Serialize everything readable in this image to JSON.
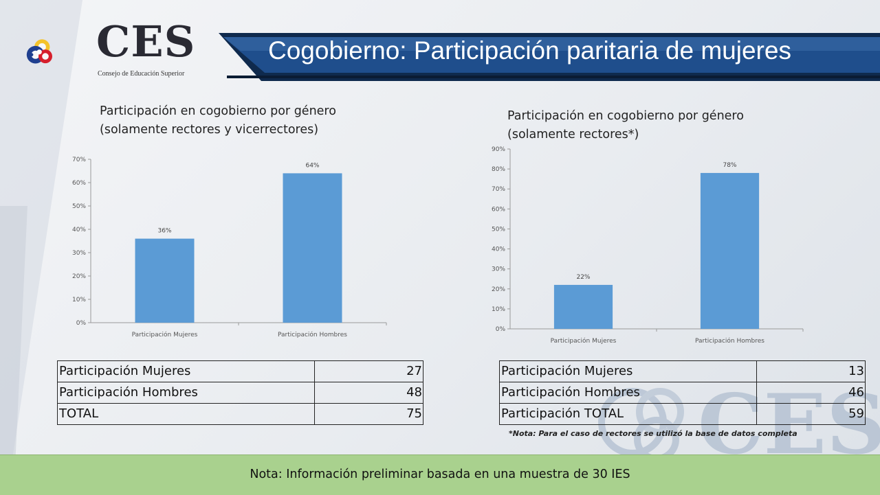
{
  "header": {
    "title": "Cogobierno: Participación paritaria de mujeres",
    "logo_text": "CES",
    "logo_subtitle": "Consejo de Educación Superior",
    "watermark_text": "CES"
  },
  "colors": {
    "bar": "#5b9bd5",
    "banner": "#1f4e8c",
    "footer": "#a9d18e"
  },
  "chart_data": [
    {
      "type": "bar",
      "title": "Participación en cogobierno por género\n(solamente rectores y vicerrectores)",
      "categories": [
        "Participación Mujeres",
        "Participación Hombres"
      ],
      "values": [
        36,
        64
      ],
      "value_labels": [
        "36%",
        "64%"
      ],
      "ylim": [
        0,
        70
      ],
      "yticks": [
        0,
        10,
        20,
        30,
        40,
        50,
        60,
        70
      ],
      "ytick_labels": [
        "0%",
        "10%",
        "20%",
        "30%",
        "40%",
        "50%",
        "60%",
        "70%"
      ],
      "grid": false,
      "legend": "none"
    },
    {
      "type": "bar",
      "title": "Participación en cogobierno por género\n(solamente rectores*)",
      "categories": [
        "Participación Mujeres",
        "Participación Hombres"
      ],
      "values": [
        22,
        78
      ],
      "value_labels": [
        "22%",
        "78%"
      ],
      "ylim": [
        0,
        90
      ],
      "yticks": [
        0,
        10,
        20,
        30,
        40,
        50,
        60,
        70,
        80,
        90
      ],
      "ytick_labels": [
        "0%",
        "10%",
        "20%",
        "30%",
        "40%",
        "50%",
        "60%",
        "70%",
        "80%",
        "90%"
      ],
      "grid": false,
      "legend": "none"
    }
  ],
  "table_left": {
    "rows": [
      {
        "label": "Participación Mujeres",
        "value": "27"
      },
      {
        "label": "Participación Hombres",
        "value": "48"
      },
      {
        "label": "TOTAL",
        "value": "75"
      }
    ]
  },
  "table_right": {
    "rows": [
      {
        "label": "Participación Mujeres",
        "value": "13"
      },
      {
        "label": "Participación Hombres",
        "value": "46"
      },
      {
        "label": "Participación TOTAL",
        "value": "59"
      }
    ]
  },
  "note_rectores": "*Nota: Para el caso de rectores se utilizó la base de datos completa",
  "footer_note": "Nota:  Información preliminar basada en una muestra de 30 IES"
}
